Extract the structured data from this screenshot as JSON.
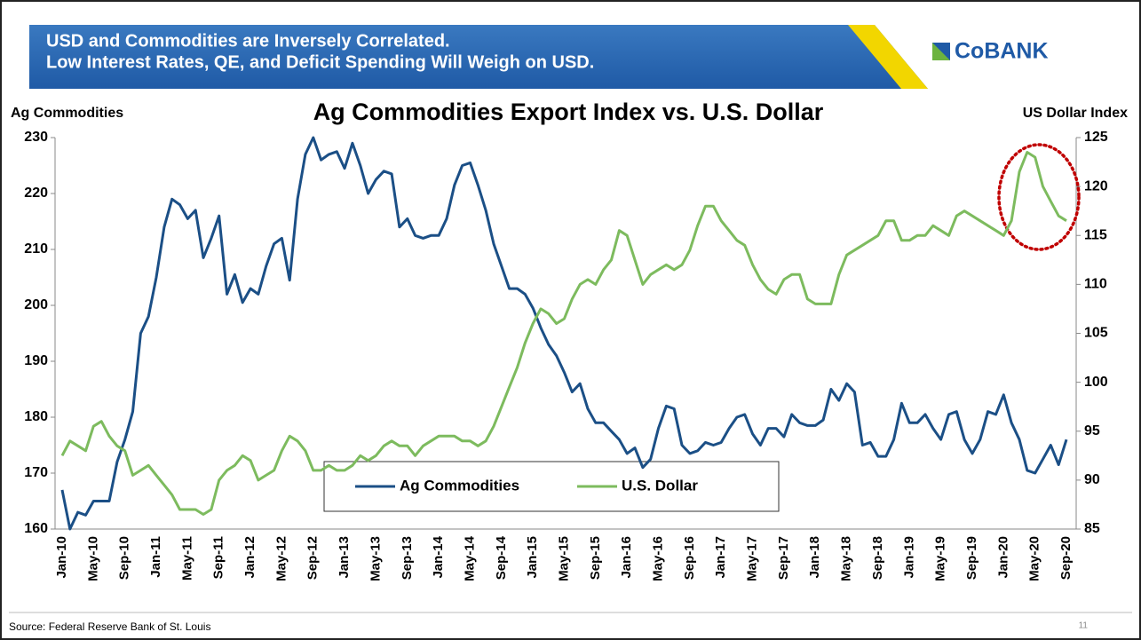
{
  "header": {
    "lines": [
      "USD and Commodities are Inversely Correlated.",
      "Low Interest Rates, QE, and Deficit Spending Will Weigh on USD."
    ],
    "logo": "CoBANK"
  },
  "footer": {
    "source": "Source: Federal Reserve Bank of St. Louis",
    "page": "11"
  },
  "chart_data": {
    "type": "line",
    "title": "Ag Commodities Export Index vs. U.S. Dollar",
    "ylabel": "Ag Commodities",
    "y2label": "US Dollar Index",
    "categories": [
      "Jan-10",
      null,
      null,
      null,
      "May-10",
      null,
      null,
      null,
      "Sep-10",
      null,
      null,
      null,
      "Jan-11",
      null,
      null,
      null,
      "May-11",
      null,
      null,
      null,
      "Sep-11",
      null,
      null,
      null,
      "Jan-12",
      null,
      null,
      null,
      "May-12",
      null,
      null,
      null,
      "Sep-12",
      null,
      null,
      null,
      "Jan-13",
      null,
      null,
      null,
      "May-13",
      null,
      null,
      null,
      "Sep-13",
      null,
      null,
      null,
      "Jan-14",
      null,
      null,
      null,
      "May-14",
      null,
      null,
      null,
      "Sep-14",
      null,
      null,
      null,
      "Jan-15",
      null,
      null,
      null,
      "May-15",
      null,
      null,
      null,
      "Sep-15",
      null,
      null,
      null,
      "Jan-16",
      null,
      null,
      null,
      "May-16",
      null,
      null,
      null,
      "Sep-16",
      null,
      null,
      null,
      "Jan-17",
      null,
      null,
      null,
      "May-17",
      null,
      null,
      null,
      "Sep-17",
      null,
      null,
      null,
      "Jan-18",
      null,
      null,
      null,
      "May-18",
      null,
      null,
      null,
      "Sep-18",
      null,
      null,
      null,
      "Jan-19",
      null,
      null,
      null,
      "May-19",
      null,
      null,
      null,
      "Sep-19",
      null,
      null,
      null,
      "Jan-20",
      null,
      null,
      null,
      "May-20",
      null,
      null,
      null,
      "Sep-20"
    ],
    "series": [
      {
        "name": "Ag Commodities",
        "color": "#1b4f86",
        "axis": "y",
        "values": [
          167,
          160,
          163,
          162.5,
          165,
          165,
          165,
          172,
          176,
          181,
          195,
          198,
          205,
          214,
          219,
          218,
          215.5,
          217,
          208.5,
          212,
          216,
          202,
          205.5,
          200.5,
          203,
          202,
          207,
          211,
          212,
          204.5,
          219,
          227,
          230,
          226,
          227,
          227.5,
          224.5,
          229,
          225,
          220,
          222.5,
          224,
          223.5,
          214,
          215.5,
          212.5,
          212,
          212.5,
          212.5,
          215.5,
          221.5,
          225,
          225.5,
          221.5,
          217,
          211,
          207,
          203,
          203,
          202,
          199.5,
          196,
          193,
          191,
          188,
          184.5,
          186,
          181.5,
          179,
          179,
          177.5,
          176,
          173.5,
          174.5,
          171,
          172.5,
          178,
          182,
          181.5,
          175,
          173.5,
          174,
          175.5,
          175,
          175.5,
          178,
          180,
          180.5,
          177,
          175,
          178,
          178,
          176.5,
          180.5,
          179,
          178.5,
          178.5,
          179.5,
          185,
          183,
          186,
          184.5,
          175,
          175.5,
          173,
          173,
          176,
          182.5,
          179,
          179,
          180.5,
          178,
          176,
          180.5,
          181,
          176,
          173.5,
          176,
          181,
          180.5,
          184,
          179,
          176,
          170.5,
          170,
          172.5,
          175,
          171.5,
          176
        ]
      },
      {
        "name": "U.S. Dollar",
        "color": "#7dbb5e",
        "axis": "y2",
        "values": [
          92.5,
          94,
          93.5,
          93,
          95.5,
          96,
          94.5,
          93.5,
          93,
          90.5,
          91,
          91.5,
          90.5,
          89.5,
          88.5,
          87,
          87,
          87,
          86.5,
          87,
          90,
          91,
          91.5,
          92.5,
          92,
          90,
          90.5,
          91,
          93,
          94.5,
          94,
          93,
          91,
          91,
          91.5,
          91,
          91,
          91.5,
          92.5,
          92,
          92.5,
          93.5,
          94,
          93.5,
          93.5,
          92.5,
          93.5,
          94,
          94.5,
          94.5,
          94.5,
          94,
          94,
          93.5,
          94,
          95.5,
          97.5,
          99.5,
          101.5,
          104,
          106,
          107.5,
          107,
          106,
          106.5,
          108.5,
          110,
          110.5,
          110,
          111.5,
          112.5,
          115.5,
          115,
          112.5,
          110,
          111,
          111.5,
          112,
          111.5,
          112,
          113.5,
          116,
          118,
          118,
          116.5,
          115.5,
          114.5,
          114,
          112,
          110.5,
          109.5,
          109,
          110.5,
          111,
          111,
          108.5,
          108,
          108,
          108,
          111,
          113,
          113.5,
          114,
          114.5,
          115,
          116.5,
          116.5,
          114.5,
          114.5,
          115,
          115,
          116,
          115.5,
          115,
          117,
          117.5,
          117,
          116.5,
          116,
          115.5,
          115,
          116.5,
          121.5,
          123.5,
          123,
          120,
          118.5,
          117,
          116.5
        ]
      }
    ],
    "ylim": [
      160,
      230
    ],
    "yticks": [
      160,
      170,
      180,
      190,
      200,
      210,
      220,
      230
    ],
    "y2lim": [
      85,
      125
    ],
    "y2ticks": [
      85,
      90,
      95,
      100,
      105,
      110,
      115,
      120,
      125
    ],
    "legend": "bottom",
    "grid": false
  }
}
